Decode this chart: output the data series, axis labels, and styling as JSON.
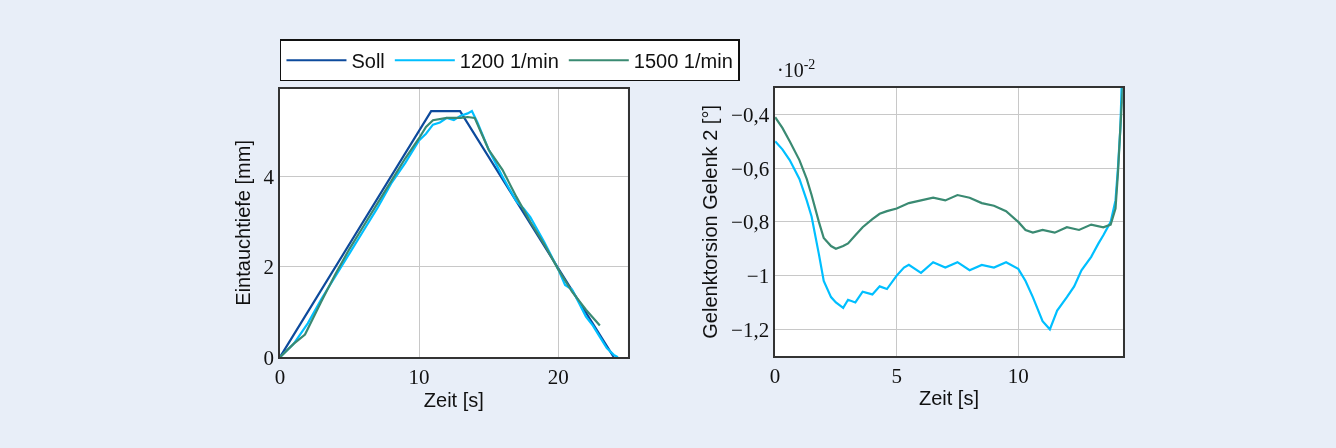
{
  "chart_data": [
    {
      "type": "line",
      "xlabel": "Zeit [s]",
      "ylabel": "Eintauchtiefe [mm]",
      "xlim": [
        0,
        25
      ],
      "xticks": [
        0,
        10,
        20
      ],
      "ylim": [
        0,
        5.95
      ],
      "yticks": [
        0,
        2,
        4
      ],
      "grid": true,
      "legend": "top",
      "line_style": "solid",
      "marker": "none",
      "series": [
        {
          "name": "Soll",
          "color": "#0d4a9c",
          "x": [
            0,
            10.87,
            12.95,
            24.0
          ],
          "values": [
            0,
            5.45,
            5.45,
            0
          ]
        },
        {
          "name": "1200 1/min",
          "color": "#00bfff",
          "x": [
            0,
            1,
            2,
            3,
            4,
            5,
            6,
            7,
            8,
            9,
            10,
            10.5,
            11,
            11.5,
            12,
            12.5,
            13,
            13.5,
            13.8,
            14.2,
            15,
            16,
            17,
            17.5,
            18,
            19,
            20,
            20.5,
            21,
            21.5,
            22,
            22.5,
            23,
            23.5,
            24,
            24.3
          ],
          "values": [
            0,
            0.3,
            0.75,
            1.3,
            1.8,
            2.3,
            2.8,
            3.3,
            3.85,
            4.3,
            4.8,
            4.95,
            5.15,
            5.2,
            5.3,
            5.25,
            5.35,
            5.4,
            5.45,
            5.2,
            4.6,
            4.0,
            3.45,
            3.3,
            3.1,
            2.55,
            1.95,
            1.6,
            1.5,
            1.2,
            0.9,
            0.7,
            0.45,
            0.2,
            0.05,
            0
          ]
        },
        {
          "name": "1500 1/min",
          "color": "#3a8a72",
          "x": [
            0,
            1,
            1.8,
            3,
            4,
            5,
            6,
            7,
            8,
            9,
            10,
            10.5,
            11,
            12,
            13,
            13.5,
            14,
            14.5,
            15,
            16,
            17,
            18,
            19,
            20,
            21,
            22,
            23
          ],
          "values": [
            0,
            0.3,
            0.5,
            1.25,
            1.85,
            2.4,
            2.9,
            3.4,
            3.9,
            4.4,
            4.85,
            5.1,
            5.25,
            5.3,
            5.3,
            5.32,
            5.3,
            4.95,
            4.6,
            4.15,
            3.55,
            3.0,
            2.5,
            1.95,
            1.45,
            1.05,
            0.7
          ]
        }
      ]
    },
    {
      "type": "line",
      "xlabel": "Zeit [s]",
      "ylabel": "Gelenktorsion Gelenk 2 [°]",
      "annotations": [
        "·10$^{-2}$"
      ],
      "xlim": [
        0,
        14.3
      ],
      "xticks": [
        0,
        5,
        10
      ],
      "ylim": [
        -1.3,
        -0.3
      ],
      "yticks": [
        {
          "value": -0.4,
          "label": "−0,4"
        },
        {
          "value": -0.6,
          "label": "−0,6"
        },
        {
          "value": -0.8,
          "label": "−0,8"
        },
        {
          "value": -1,
          "label": "−1"
        },
        {
          "value": -1.2,
          "label": "−1,2"
        }
      ],
      "grid": true,
      "line_style": "solid",
      "marker": "none",
      "series": [
        {
          "color": "#00bfff",
          "x": [
            0,
            0.3,
            0.6,
            1,
            1.3,
            1.5,
            1.8,
            2,
            2.3,
            2.5,
            2.8,
            3,
            3.3,
            3.6,
            4,
            4.3,
            4.6,
            5,
            5.3,
            5.5,
            6,
            6.5,
            7,
            7.5,
            8,
            8.5,
            9,
            9.5,
            10,
            10.3,
            10.6,
            11,
            11.3,
            11.6,
            12,
            12.3,
            12.6,
            13,
            13.3,
            13.5,
            13.8,
            14,
            14.1,
            14.2,
            14.25
          ],
          "values": [
            -0.5,
            -0.53,
            -0.57,
            -0.64,
            -0.72,
            -0.78,
            -0.92,
            -1.02,
            -1.08,
            -1.1,
            -1.12,
            -1.09,
            -1.1,
            -1.06,
            -1.07,
            -1.04,
            -1.05,
            -1.0,
            -0.97,
            -0.96,
            -0.99,
            -0.95,
            -0.97,
            -0.95,
            -0.98,
            -0.96,
            -0.97,
            -0.95,
            -0.975,
            -1.02,
            -1.08,
            -1.17,
            -1.2,
            -1.13,
            -1.08,
            -1.04,
            -0.98,
            -0.93,
            -0.88,
            -0.85,
            -0.8,
            -0.72,
            -0.6,
            -0.45,
            -0.3
          ]
        },
        {
          "color": "#3a8a72",
          "x": [
            0,
            0.3,
            0.6,
            1,
            1.3,
            1.5,
            1.8,
            2,
            2.3,
            2.5,
            2.8,
            3,
            3.3,
            3.6,
            4,
            4.3,
            4.6,
            5,
            5.5,
            6,
            6.5,
            7,
            7.5,
            8,
            8.5,
            9,
            9.5,
            10,
            10.3,
            10.6,
            11,
            11.5,
            12,
            12.5,
            13,
            13.5,
            13.8,
            14,
            14.1,
            14.2,
            14.3
          ],
          "values": [
            -0.41,
            -0.45,
            -0.5,
            -0.57,
            -0.64,
            -0.7,
            -0.8,
            -0.86,
            -0.89,
            -0.9,
            -0.89,
            -0.88,
            -0.85,
            -0.82,
            -0.79,
            -0.77,
            -0.76,
            -0.75,
            -0.73,
            -0.72,
            -0.71,
            -0.72,
            -0.7,
            -0.71,
            -0.73,
            -0.74,
            -0.76,
            -0.8,
            -0.83,
            -0.84,
            -0.83,
            -0.84,
            -0.82,
            -0.83,
            -0.81,
            -0.82,
            -0.81,
            -0.75,
            -0.62,
            -0.45,
            -0.3
          ]
        }
      ]
    }
  ]
}
